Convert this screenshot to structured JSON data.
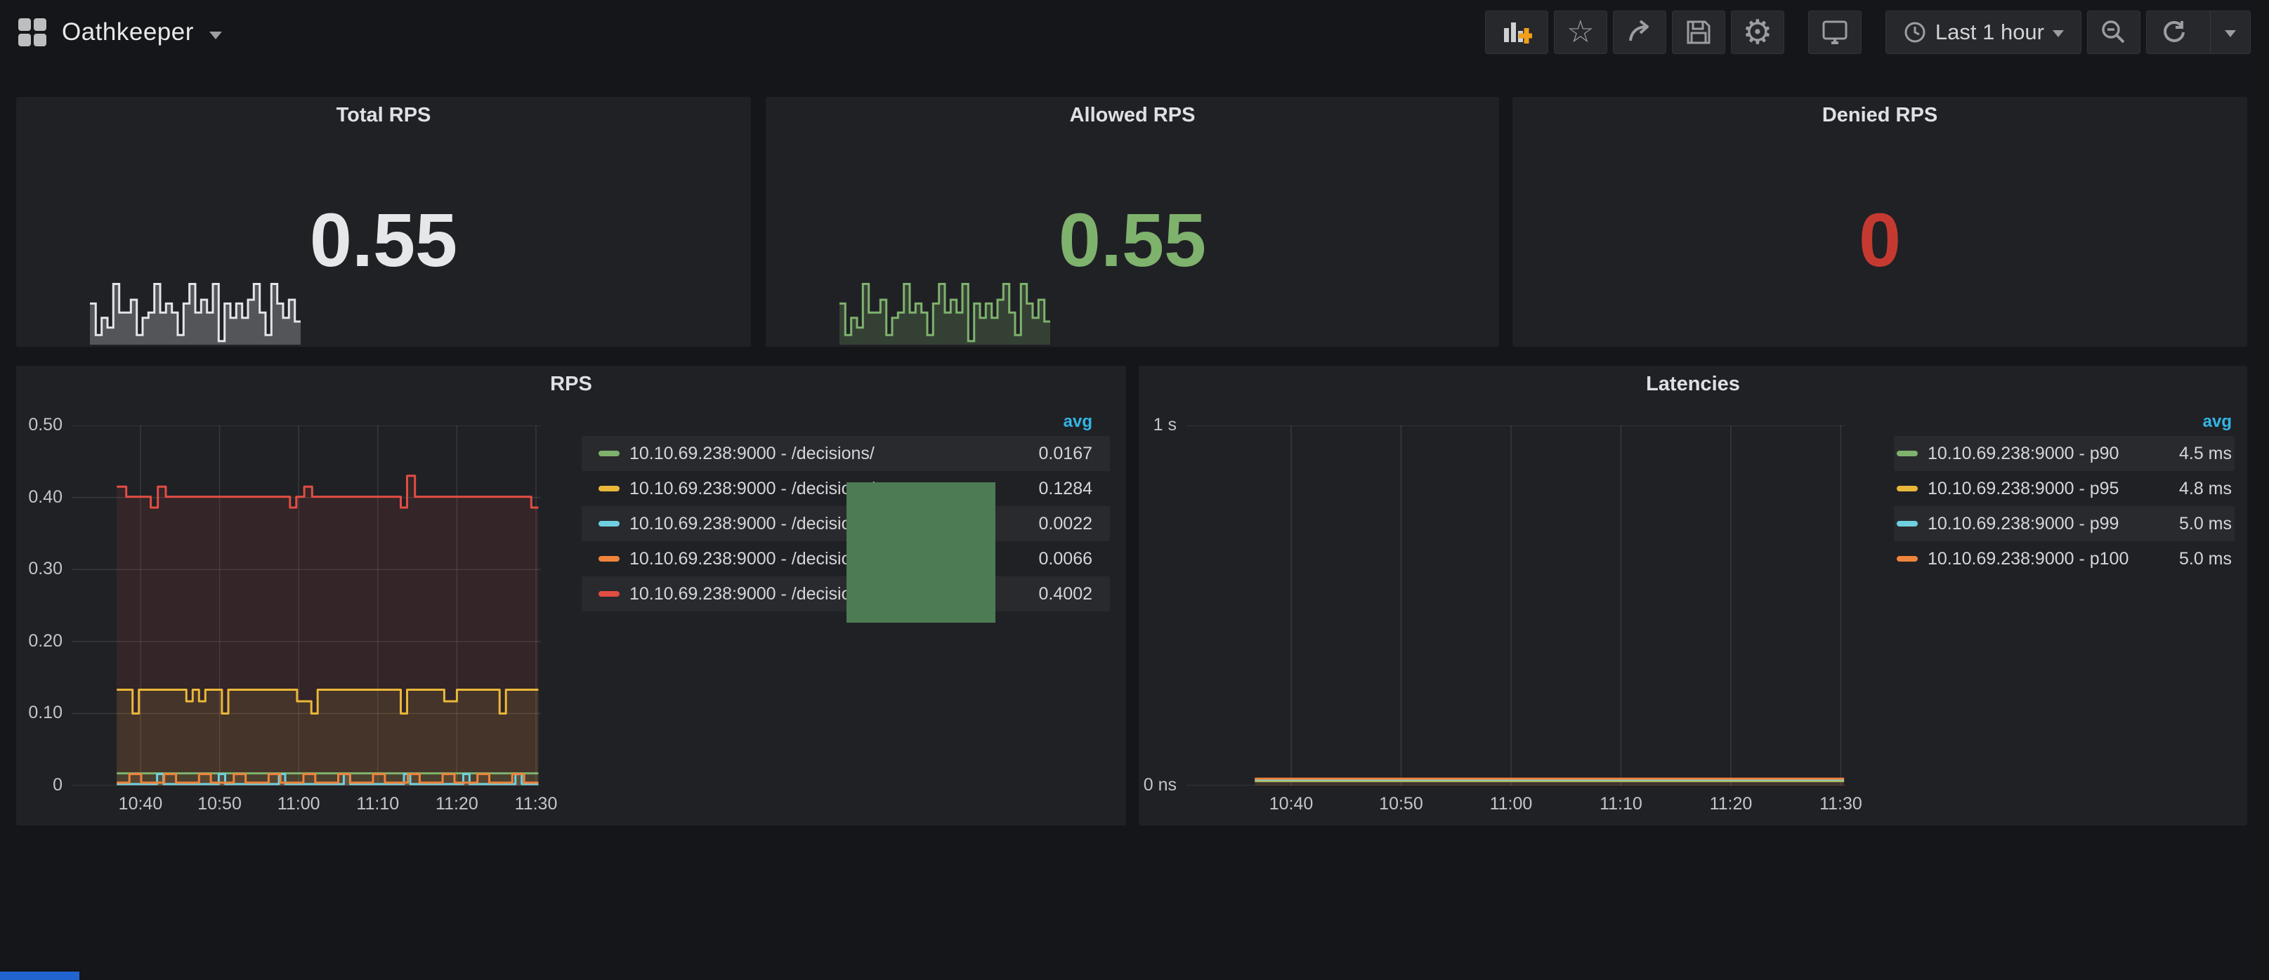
{
  "navbar": {
    "title": "Oathkeeper",
    "time_picker_label": "Last 1 hour"
  },
  "palette": {
    "green": "#7eb26d",
    "yellow": "#eab839",
    "blue": "#6ed0e0",
    "orange": "#ef843c",
    "red": "#e24d42",
    "avg_header": "#33b5e5",
    "overlay_green": "#4d7b53",
    "accent_blue": "#2163cf"
  },
  "sparkline_pattern": [
    0.52,
    0.1,
    0.33,
    0.2,
    0.78,
    0.4,
    0.4,
    0.57,
    0.1,
    0.33,
    0.4,
    0.78,
    0.4,
    0.52,
    0.4,
    0.1,
    0.52,
    0.78,
    0.4,
    0.57,
    0.4,
    0.78,
    0.02,
    0.52,
    0.33,
    0.52,
    0.33,
    0.57,
    0.78,
    0.4,
    0.1,
    0.78,
    0.52,
    0.33,
    0.57,
    0.28
  ],
  "stats": [
    {
      "title": "Total RPS",
      "value": "0.55",
      "value_color": "#e6e7e9",
      "spark_color": "#e2e4e7",
      "spark_fill": "rgba(220,222,226,0.28)",
      "has_spark": true
    },
    {
      "title": "Allowed RPS",
      "value": "0.55",
      "value_color": "#7eb26d",
      "spark_color": "#7eb26d",
      "spark_fill": "rgba(126,178,109,0.22)",
      "has_spark": true
    },
    {
      "title": "Denied RPS",
      "value": "0",
      "value_color": "#c53a30",
      "spark_color": null,
      "spark_fill": null,
      "has_spark": false
    }
  ],
  "rps": {
    "title": "RPS",
    "avg_label": "avg",
    "legend": [
      {
        "label": "10.10.69.238:9000 - /decisions/",
        "value": "0.0167",
        "color": "#7eb26d"
      },
      {
        "label": "10.10.69.238:9000 - /decisions/",
        "value": "0.1284",
        "color": "#eab839"
      },
      {
        "label": "10.10.69.238:9000 - /decisions/",
        "value": "0.0022",
        "color": "#6ed0e0"
      },
      {
        "label": "10.10.69.238:9000 - /decisions/",
        "value": "0.0066",
        "color": "#ef843c"
      },
      {
        "label": "10.10.69.238:9000 - /decisions/",
        "value": "0.4002",
        "color": "#e24d42"
      }
    ],
    "ytick_labels": [
      "0.50",
      "0.40",
      "0.30",
      "0.20",
      "0.10",
      "0"
    ],
    "xtick_labels": [
      "10:40",
      "10:50",
      "11:00",
      "11:10",
      "11:20",
      "11:30"
    ],
    "chart_data": {
      "type": "line",
      "x_range_minutes": [
        1.39,
        60.62
      ],
      "y_range": [
        0,
        0.5
      ],
      "x_tick_minutes": [
        10,
        20,
        30,
        40,
        50,
        60
      ],
      "y_tick_values": [
        0,
        0.1,
        0.2,
        0.3,
        0.4,
        0.5
      ],
      "series": [
        {
          "name": "10.10.69.238:9000 - /decisions/ (red)",
          "color": "#e24d42",
          "fill": "rgba(226,77,66,0.10)",
          "avg": 0.4002,
          "points": [
            [
              7,
              0.415
            ],
            [
              8.2,
              0.415
            ],
            [
              8.2,
              0.401
            ],
            [
              11.3,
              0.401
            ],
            [
              11.3,
              0.386
            ],
            [
              12.2,
              0.386
            ],
            [
              12.2,
              0.415
            ],
            [
              13.2,
              0.415
            ],
            [
              13.2,
              0.401
            ],
            [
              28.9,
              0.401
            ],
            [
              28.9,
              0.386
            ],
            [
              29.7,
              0.386
            ],
            [
              29.7,
              0.401
            ],
            [
              30.7,
              0.401
            ],
            [
              30.7,
              0.415
            ],
            [
              31.7,
              0.415
            ],
            [
              31.7,
              0.401
            ],
            [
              42.9,
              0.401
            ],
            [
              42.9,
              0.386
            ],
            [
              43.7,
              0.386
            ],
            [
              43.7,
              0.43
            ],
            [
              44.7,
              0.43
            ],
            [
              44.7,
              0.401
            ],
            [
              59.4,
              0.401
            ],
            [
              59.4,
              0.386
            ],
            [
              60.3,
              0.386
            ]
          ]
        },
        {
          "name": "10.10.69.238:9000 - /decisions/ (yellow)",
          "color": "#eab839",
          "fill": "rgba(234,184,57,0.10)",
          "avg": 0.1284,
          "points": [
            [
              7,
              0.133
            ],
            [
              9,
              0.133
            ],
            [
              9,
              0.1
            ],
            [
              9.8,
              0.1
            ],
            [
              9.8,
              0.133
            ],
            [
              15.8,
              0.133
            ],
            [
              15.8,
              0.117
            ],
            [
              16.6,
              0.117
            ],
            [
              16.6,
              0.133
            ],
            [
              17.4,
              0.133
            ],
            [
              17.4,
              0.117
            ],
            [
              18.2,
              0.117
            ],
            [
              18.2,
              0.133
            ],
            [
              20.3,
              0.133
            ],
            [
              20.3,
              0.1
            ],
            [
              21.1,
              0.1
            ],
            [
              21.1,
              0.133
            ],
            [
              29.8,
              0.133
            ],
            [
              29.8,
              0.117
            ],
            [
              31.6,
              0.117
            ],
            [
              31.6,
              0.1
            ],
            [
              32.4,
              0.1
            ],
            [
              32.4,
              0.133
            ],
            [
              42.9,
              0.133
            ],
            [
              42.9,
              0.1
            ],
            [
              43.7,
              0.1
            ],
            [
              43.7,
              0.133
            ],
            [
              48.4,
              0.133
            ],
            [
              48.4,
              0.117
            ],
            [
              50,
              0.117
            ],
            [
              50,
              0.133
            ],
            [
              55.4,
              0.133
            ],
            [
              55.4,
              0.1
            ],
            [
              56.2,
              0.1
            ],
            [
              56.2,
              0.133
            ],
            [
              60.3,
              0.133
            ]
          ]
        },
        {
          "name": "10.10.69.238:9000 - /decisions/ (green)",
          "color": "#7eb26d",
          "fill": "rgba(126,178,109,0.10)",
          "avg": 0.0167,
          "points": [
            [
              7,
              0.017
            ],
            [
              60.3,
              0.017
            ]
          ]
        },
        {
          "name": "10.10.69.238:9000 - /decisions/ (blue)",
          "color": "#6ed0e0",
          "fill": "rgba(110,208,224,0.10)",
          "avg": 0.0022,
          "baseline": 0.002,
          "spike_value": 0.016,
          "spike_width": 0.8,
          "spike_times": [
            12.5,
            20.3,
            27.9,
            36.1,
            43.7,
            51.2,
            57.8
          ],
          "span": [
            7,
            60.3
          ]
        },
        {
          "name": "10.10.69.238:9000 - /decisions/ (orange)",
          "color": "#ef843c",
          "fill": "rgba(239,132,60,0.10)",
          "avg": 0.0066,
          "square": {
            "start": 7,
            "end": 60.3,
            "low": 0.004,
            "high": 0.016,
            "period": 4.4,
            "duty": 0.34,
            "phase": 1.6
          }
        }
      ]
    }
  },
  "latencies": {
    "title": "Latencies",
    "avg_label": "avg",
    "legend": [
      {
        "label": "10.10.69.238:9000 - p90",
        "value": "4.5 ms",
        "color": "#7eb26d"
      },
      {
        "label": "10.10.69.238:9000 - p95",
        "value": "4.8 ms",
        "color": "#eab839"
      },
      {
        "label": "10.10.69.238:9000 - p99",
        "value": "5.0 ms",
        "color": "#6ed0e0"
      },
      {
        "label": "10.10.69.238:9000 - p100",
        "value": "5.0 ms",
        "color": "#ef843c"
      }
    ],
    "ytick_labels": [
      "1 s",
      "0 ns"
    ],
    "xtick_labels": [
      "10:40",
      "10:50",
      "11:00",
      "11:10",
      "11:20",
      "11:30"
    ],
    "chart_data": {
      "type": "line",
      "x_range_minutes": [
        0.48,
        60.42
      ],
      "y_range": [
        0,
        1
      ],
      "x_tick_minutes": [
        10,
        20,
        30,
        40,
        50,
        60
      ],
      "y_tick_values": [
        0,
        1
      ],
      "series": [
        {
          "name": "10.10.69.238:9000 - p90",
          "color": "#7eb26d",
          "fill": null,
          "avg_ms": 4.5,
          "points": [
            [
              6.7,
              0.012
            ],
            [
              60.3,
              0.012
            ]
          ]
        },
        {
          "name": "10.10.69.238:9000 - p95",
          "color": "#eab839",
          "fill": null,
          "avg_ms": 4.8,
          "points": [
            [
              6.7,
              0.014
            ],
            [
              60.3,
              0.014
            ]
          ]
        },
        {
          "name": "10.10.69.238:9000 - p99",
          "color": "#6ed0e0",
          "fill": null,
          "avg_ms": 5.0,
          "points": [
            [
              6.7,
              0.016
            ],
            [
              60.3,
              0.016
            ]
          ]
        },
        {
          "name": "10.10.69.238:9000 - p100",
          "color": "#ef843c",
          "fill": "rgba(239,132,60,0.16)",
          "avg_ms": 5.0,
          "points": [
            [
              6.7,
              0.019
            ],
            [
              60.3,
              0.019
            ]
          ]
        }
      ]
    }
  }
}
